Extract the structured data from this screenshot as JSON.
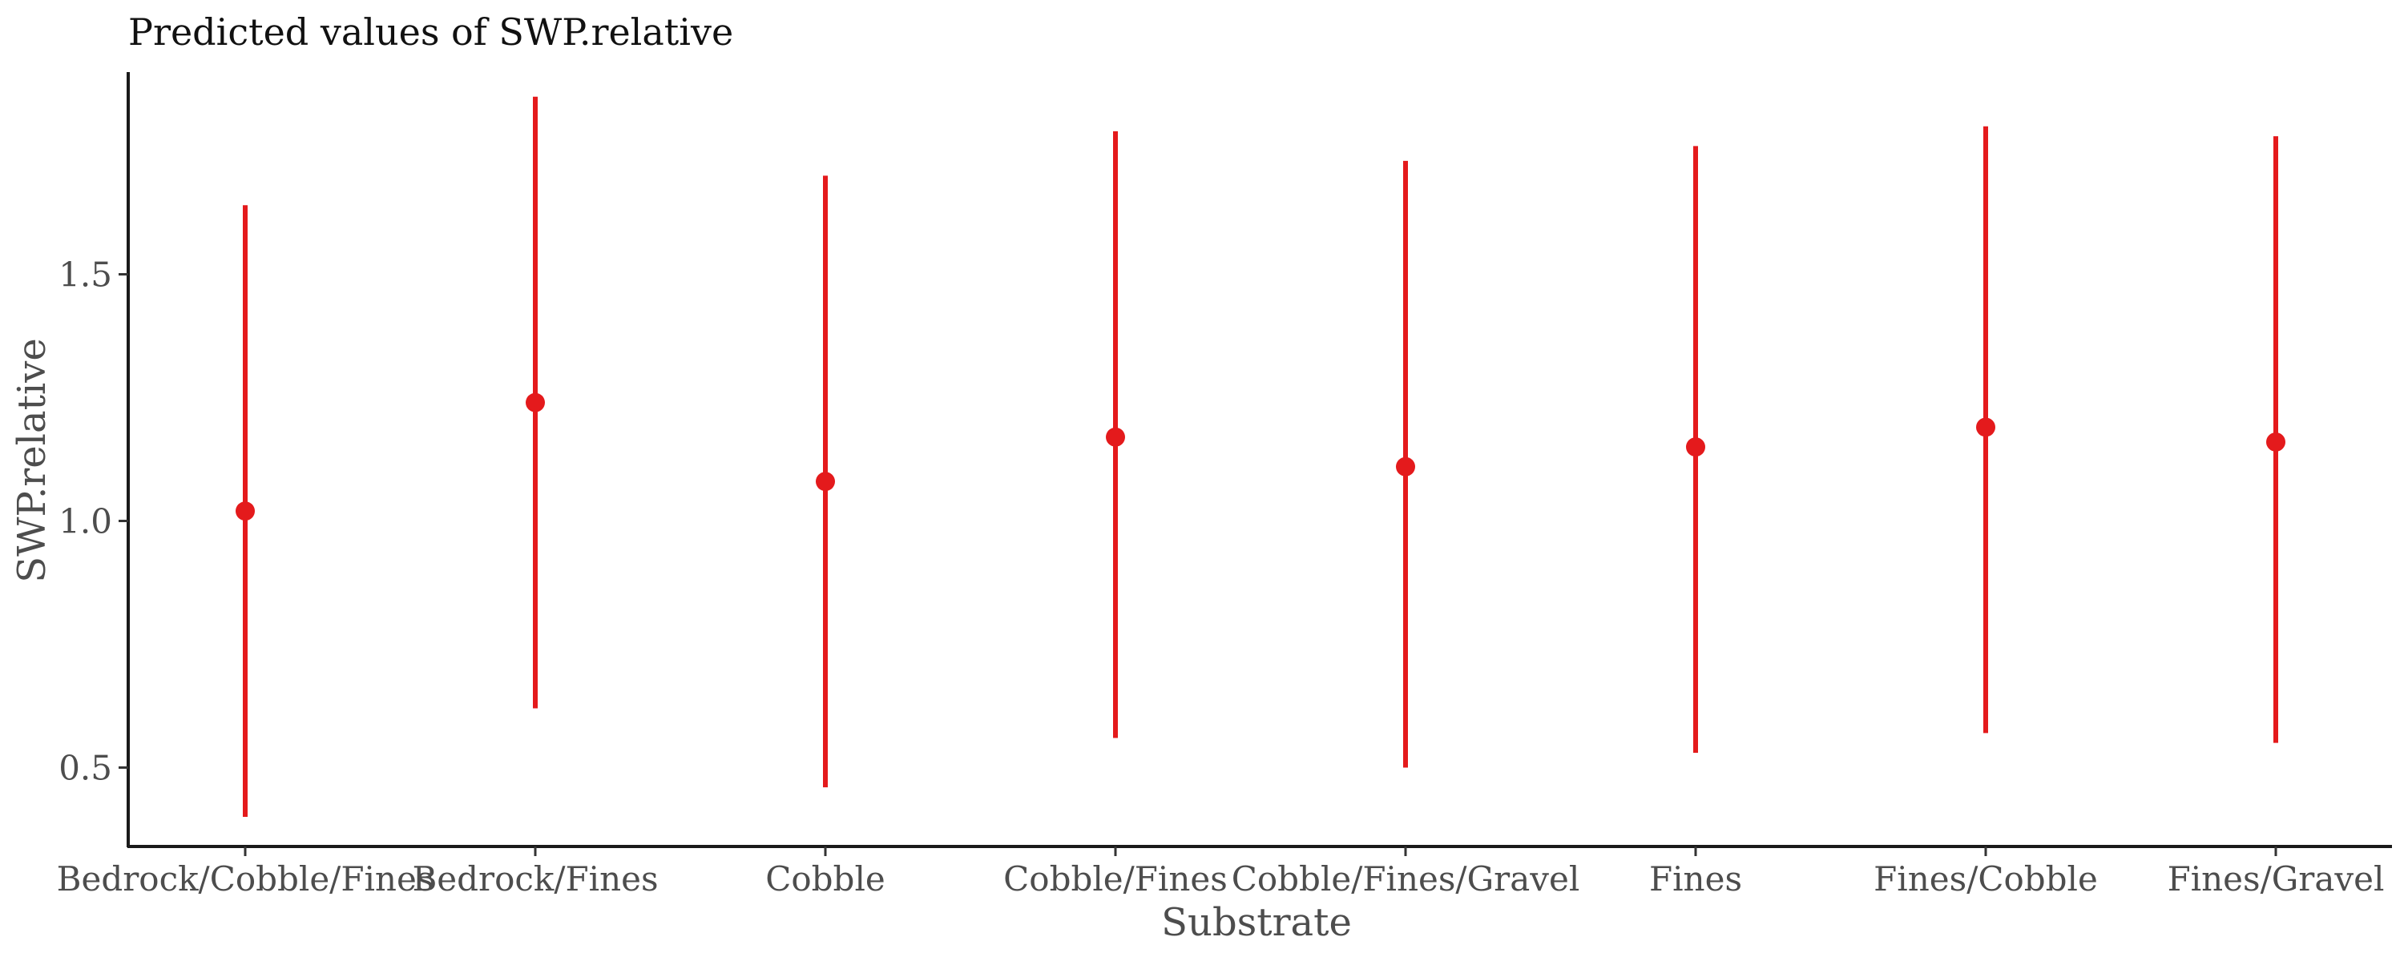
{
  "chart_data": {
    "type": "errorbar",
    "title": "Predicted values of SWP.relative",
    "xlabel": "Substrate",
    "ylabel": "SWP.relative",
    "ylim": [
      0.34,
      1.91
    ],
    "yticks": [
      0.5,
      1.0,
      1.5
    ],
    "ytick_labels": [
      "0.5",
      "1.0",
      "1.5"
    ],
    "grid": false,
    "color": "#e41a1c",
    "categories": [
      "Bedrock/Cobble/Fines",
      "Bedrock/Fines",
      "Cobble",
      "Cobble/Fines",
      "Cobble/Fines/Gravel",
      "Fines",
      "Fines/Cobble",
      "Fines/Gravel"
    ],
    "values": [
      1.02,
      1.24,
      1.08,
      1.17,
      1.11,
      1.15,
      1.19,
      1.16
    ],
    "lower": [
      0.4,
      0.62,
      0.46,
      0.56,
      0.5,
      0.53,
      0.57,
      0.55
    ],
    "upper": [
      1.64,
      1.86,
      1.7,
      1.79,
      1.73,
      1.76,
      1.8,
      1.78
    ]
  }
}
